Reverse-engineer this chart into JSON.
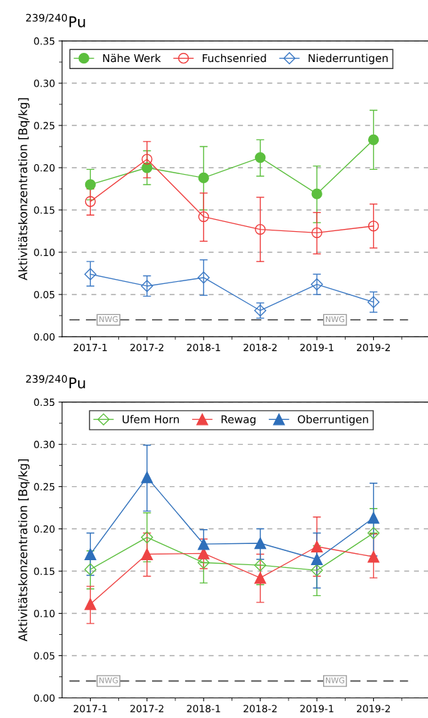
{
  "chart_data": [
    {
      "type": "line",
      "title": "$^{239/240}$Pu",
      "ylabel": "Aktivitätskonzentration [Bq/kg]",
      "categories": [
        "2017-1",
        "2017-2",
        "2018-1",
        "2018-2",
        "2019-1",
        "2019-2"
      ],
      "ylim": [
        0,
        0.35
      ],
      "yticks": [
        {
          "value": 0,
          "label": "0.00"
        },
        {
          "value": 0.05,
          "label": "0.05"
        },
        {
          "value": 0.1,
          "label": "0.10"
        },
        {
          "value": 0.15,
          "label": "0.15"
        },
        {
          "value": 0.2,
          "label": "0.20"
        },
        {
          "value": 0.25,
          "label": "0.25"
        },
        {
          "value": 0.3,
          "label": "0.30"
        },
        {
          "value": 0.35,
          "label": "0.35"
        }
      ],
      "grid": "y",
      "legend": "top",
      "line_style": "solid",
      "series": [
        {
          "name": "Nähe Werk",
          "color": "#5cbf3e",
          "marker": "circle",
          "values": [
            0.18,
            0.2,
            0.188,
            0.212,
            0.169,
            0.233
          ],
          "errors": [
            [
              0.162,
              0.198
            ],
            [
              0.18,
              0.22
            ],
            [
              0.15,
              0.225
            ],
            [
              0.19,
              0.233
            ],
            [
              0.135,
              0.202
            ],
            [
              0.198,
              0.268
            ]
          ]
        },
        {
          "name": "Fuchsenried",
          "color": "#ee3b3b",
          "marker": "circle open",
          "values": [
            0.16,
            0.21,
            0.142,
            0.127,
            0.123,
            0.131
          ],
          "errors": [
            [
              0.144,
              0.175
            ],
            [
              0.188,
              0.231
            ],
            [
              0.113,
              0.17
            ],
            [
              0.089,
              0.165
            ],
            [
              0.098,
              0.147
            ],
            [
              0.105,
              0.157
            ]
          ]
        },
        {
          "name": "Niederruntigen",
          "color": "#3a78c4",
          "marker": "diamond open",
          "values": [
            0.074,
            0.06,
            0.07,
            0.031,
            0.062,
            0.041
          ],
          "errors": [
            [
              0.06,
              0.089
            ],
            [
              0.048,
              0.072
            ],
            [
              0.049,
              0.091
            ],
            [
              0.022,
              0.04
            ],
            [
              0.05,
              0.074
            ],
            [
              0.029,
              0.053
            ]
          ]
        }
      ],
      "ref_lines": [
        {
          "axis": "y",
          "value": 0.02,
          "color": "#555555",
          "line_style": "dashed"
        }
      ],
      "annotations": [
        {
          "text": "NWG",
          "x": "2017-1",
          "y": 0.02
        },
        {
          "text": "NWG",
          "x": "2019-1",
          "y": 0.02
        }
      ]
    },
    {
      "type": "line",
      "title": "$^{239/240}$Pu",
      "ylabel": "Aktivitätskonzentration [Bq/kg]",
      "categories": [
        "2017-1",
        "2017-2",
        "2018-1",
        "2018-2",
        "2019-1",
        "2019-2"
      ],
      "ylim": [
        0,
        0.35
      ],
      "yticks": [
        {
          "value": 0,
          "label": "0.00"
        },
        {
          "value": 0.05,
          "label": "0.05"
        },
        {
          "value": 0.1,
          "label": "0.10"
        },
        {
          "value": 0.15,
          "label": "0.15"
        },
        {
          "value": 0.2,
          "label": "0.20"
        },
        {
          "value": 0.25,
          "label": "0.25"
        },
        {
          "value": 0.3,
          "label": "0.30"
        },
        {
          "value": 0.35,
          "label": "0.35"
        }
      ],
      "grid": "y",
      "legend": "top",
      "line_style": "solid",
      "series": [
        {
          "name": "Ufem Horn",
          "color": "#5cbf3e",
          "marker": "diamond open",
          "values": [
            0.152,
            0.19,
            0.16,
            0.157,
            0.151,
            0.195
          ],
          "errors": [
            [
              0.129,
              0.174
            ],
            [
              0.161,
              0.219
            ],
            [
              0.136,
              0.16
            ],
            [
              0.134,
              0.157
            ],
            [
              0.121,
              0.18
            ],
            [
              0.195,
              0.224
            ]
          ]
        },
        {
          "name": "Rewag",
          "color": "#ee4444",
          "marker": "triangle",
          "values": [
            0.111,
            0.17,
            0.171,
            0.142,
            0.179,
            0.167
          ],
          "errors": [
            [
              0.088,
              0.132
            ],
            [
              0.144,
              0.195
            ],
            [
              0.153,
              0.188
            ],
            [
              0.113,
              0.17
            ],
            [
              0.144,
              0.214
            ],
            [
              0.142,
              0.194
            ]
          ]
        },
        {
          "name": "Oberruntigen",
          "color": "#2e6fba",
          "marker": "triangle",
          "values": [
            0.17,
            0.261,
            0.182,
            0.183,
            0.164,
            0.213
          ],
          "errors": [
            [
              0.145,
              0.195
            ],
            [
              0.221,
              0.299
            ],
            [
              0.165,
              0.199
            ],
            [
              0.164,
              0.2
            ],
            [
              0.13,
              0.195
            ],
            [
              0.168,
              0.254
            ]
          ]
        }
      ],
      "ref_lines": [
        {
          "axis": "y",
          "value": 0.02,
          "color": "#555555",
          "line_style": "dashed"
        }
      ],
      "annotations": [
        {
          "text": "NWG",
          "x": "2017-1",
          "y": 0.02
        },
        {
          "text": "NWG",
          "x": "2019-1",
          "y": 0.02
        }
      ]
    }
  ]
}
